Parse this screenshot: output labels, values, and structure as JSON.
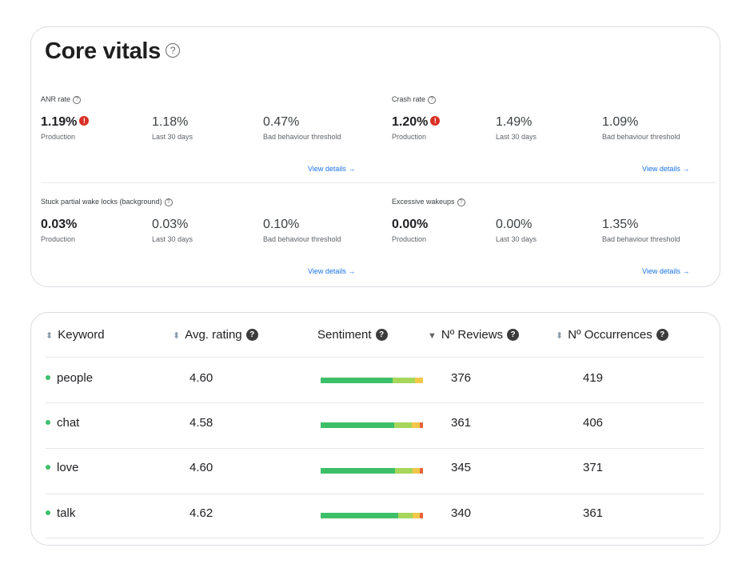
{
  "vitals": {
    "title": "Core vitals",
    "help_glyph": "?",
    "alert_glyph": "!",
    "metrics": [
      {
        "label": "ANR rate",
        "production": "1.19%",
        "production_label": "Production",
        "alert": true,
        "last30": "1.18%",
        "last30_label": "Last 30 days",
        "threshold": "0.47%",
        "threshold_label": "Bad behaviour threshold",
        "link": "View details →"
      },
      {
        "label": "Crash rate",
        "production": "1.20%",
        "production_label": "Production",
        "alert": true,
        "last30": "1.49%",
        "last30_label": "Last 30 days",
        "threshold": "1.09%",
        "threshold_label": "Bad behaviour threshold",
        "link": "View details →"
      },
      {
        "label": "Stuck partial wake locks (background)",
        "production": "0.03%",
        "production_label": "Production",
        "alert": false,
        "last30": "0.03%",
        "last30_label": "Last 30 days",
        "threshold": "0.10%",
        "threshold_label": "Bad behaviour threshold",
        "link": "View details →"
      },
      {
        "label": "Excessive wakeups",
        "production": "0.00%",
        "production_label": "Production",
        "alert": false,
        "last30": "0.00%",
        "last30_label": "Last 30 days",
        "threshold": "1.35%",
        "threshold_label": "Bad behaviour threshold",
        "link": "View details →"
      }
    ]
  },
  "keywords": {
    "headers": {
      "keyword": "Keyword",
      "avg_rating": "Avg. rating",
      "sentiment": "Sentiment",
      "reviews": "Nº Reviews",
      "occurrences": "Nº Occurrences"
    },
    "sort_glyph": "⬍",
    "sort_desc_glyph": "▼",
    "qmark_glyph": "?",
    "colors": {
      "positive": "#3dbf6a",
      "neutral": "#a6d65a",
      "warning": "#f2c84b",
      "negative": "#e8643c"
    },
    "rows": [
      {
        "keyword": "people",
        "avg_rating": "4.60",
        "reviews": "376",
        "occurrences": "419",
        "sentiment": {
          "positive": 0.7,
          "neutral": 0.22,
          "warning": 0.08,
          "negative": 0.0
        }
      },
      {
        "keyword": "chat",
        "avg_rating": "4.58",
        "reviews": "361",
        "occurrences": "406",
        "sentiment": {
          "positive": 0.72,
          "neutral": 0.17,
          "warning": 0.08,
          "negative": 0.03
        }
      },
      {
        "keyword": "love",
        "avg_rating": "4.60",
        "reviews": "345",
        "occurrences": "371",
        "sentiment": {
          "positive": 0.73,
          "neutral": 0.17,
          "warning": 0.07,
          "negative": 0.03
        }
      },
      {
        "keyword": "talk",
        "avg_rating": "4.62",
        "reviews": "340",
        "occurrences": "361",
        "sentiment": {
          "positive": 0.76,
          "neutral": 0.14,
          "warning": 0.07,
          "negative": 0.03
        }
      }
    ]
  }
}
